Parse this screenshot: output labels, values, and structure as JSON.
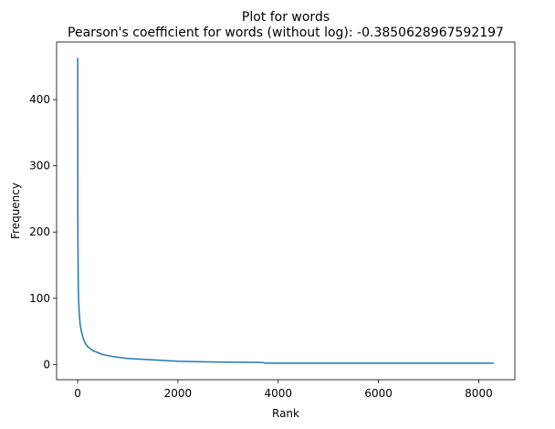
{
  "chart_data": {
    "type": "line",
    "title": "Plot for words",
    "subtitle": "Pearson's coefficient for words (without log): -0.3850628967592197",
    "xlabel": "Rank",
    "ylabel": "Frequency",
    "xlim": [
      -420,
      8720
    ],
    "ylim": [
      -23,
      487
    ],
    "xticks": [
      0,
      2000,
      4000,
      6000,
      8000
    ],
    "xtick_labels": [
      "0",
      "2000",
      "4000",
      "6000",
      "8000"
    ],
    "yticks": [
      0,
      100,
      200,
      300,
      400
    ],
    "ytick_labels": [
      "0",
      "100",
      "200",
      "300",
      "400"
    ],
    "grid": false,
    "series": [
      {
        "color": "#1f77b4",
        "x": [
          1,
          2,
          3,
          5,
          8,
          12,
          20,
          30,
          50,
          70,
          100,
          150,
          200,
          300,
          400,
          500,
          700,
          1000,
          1500,
          2000,
          2500,
          3000,
          3700,
          3750,
          5000,
          6000,
          7000,
          8000,
          8300
        ],
        "y": [
          463,
          300,
          230,
          190,
          160,
          120,
          95,
          80,
          60,
          52,
          42,
          32,
          27,
          21,
          18,
          15,
          12,
          9,
          7,
          5,
          4,
          3.5,
          3,
          2,
          2,
          2,
          2,
          2,
          2
        ]
      }
    ]
  }
}
